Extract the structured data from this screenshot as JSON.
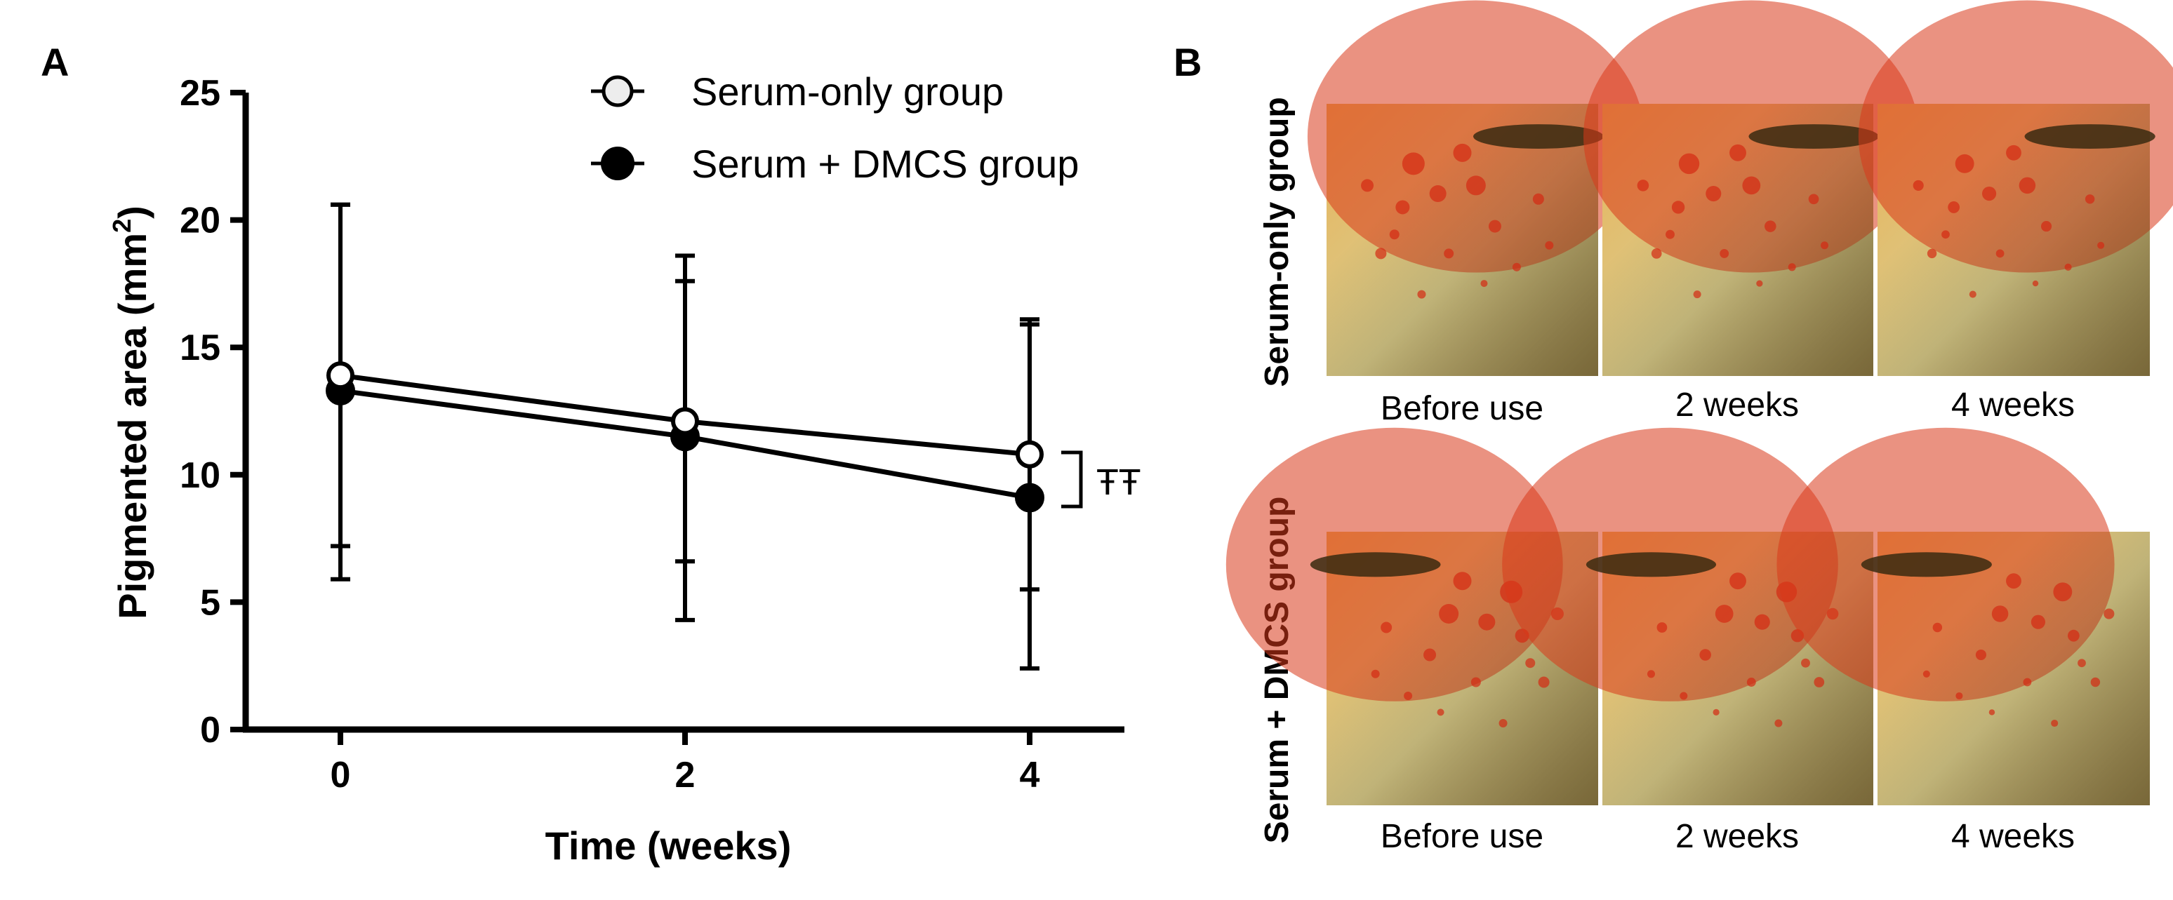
{
  "panels": {
    "a_label": "A",
    "b_label": "B"
  },
  "chart_data": {
    "type": "line",
    "title": "",
    "xlabel": "Time (weeks)",
    "ylabel_main": "Pigmented area (mm",
    "ylabel_sup": "2",
    "ylabel_tail": ")",
    "x": [
      0,
      2,
      4
    ],
    "xticks": [
      "0",
      "2",
      "4"
    ],
    "yticks": [
      "0",
      "5",
      "10",
      "15",
      "20",
      "25"
    ],
    "xlim": [
      -0.55,
      4.55
    ],
    "ylim": [
      0,
      25
    ],
    "grid": false,
    "legend_position": "top-right",
    "series": [
      {
        "name": "Serum-only group",
        "marker": "open-circle",
        "color": "#000000",
        "values": [
          13.9,
          12.1,
          10.8
        ],
        "err_low": [
          5.9,
          6.6,
          5.5
        ],
        "err_high": [
          20.6,
          17.6,
          15.9
        ]
      },
      {
        "name": "Serum + DMCS group",
        "marker": "filled-circle",
        "color": "#000000",
        "values": [
          13.3,
          11.5,
          9.1
        ],
        "err_low": [
          7.2,
          4.3,
          2.4
        ],
        "err_high": [
          20.6,
          18.6,
          16.1
        ]
      }
    ],
    "annotation": "ŦŦ"
  },
  "photo_panel": {
    "rows": [
      {
        "label": "Serum-only group",
        "captions": [
          "Before use",
          "2 weeks",
          "4 weeks"
        ]
      },
      {
        "label": "Serum + DMCS group",
        "captions": [
          "Before use",
          "2 weeks",
          "4 weeks"
        ]
      }
    ],
    "colors": {
      "skin_light": "#d9c98a",
      "skin_mid": "#c8a85e",
      "pigment": "#e0401c",
      "shadow": "#6b5a2c"
    }
  }
}
